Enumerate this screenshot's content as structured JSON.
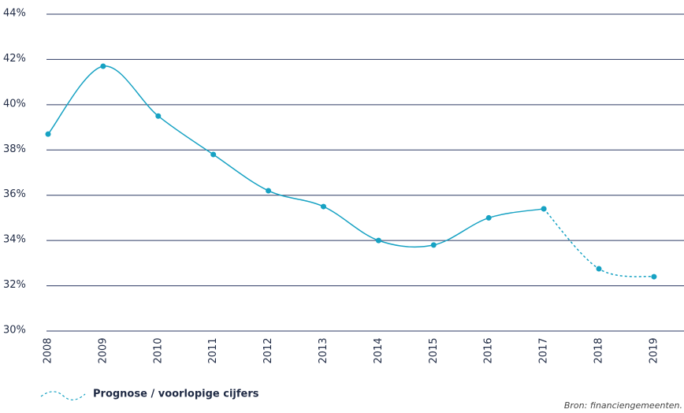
{
  "chart_data": {
    "type": "line",
    "categories": [
      "2008",
      "2009",
      "2010",
      "2011",
      "2012",
      "2013",
      "2014",
      "2015",
      "2016",
      "2017",
      "2018",
      "2019"
    ],
    "series": [
      {
        "color": "#17a2c3",
        "dash": false,
        "values": [
          38.7,
          41.7,
          39.5,
          37.8,
          36.2,
          35.5,
          34.0,
          33.8,
          35.0,
          35.4,
          null,
          null
        ]
      },
      {
        "name": "Prognose / voorlopige cijfers",
        "color": "#17a2c3",
        "dash": true,
        "values": [
          null,
          null,
          null,
          null,
          null,
          null,
          null,
          null,
          null,
          35.4,
          32.75,
          32.4
        ]
      }
    ],
    "ylim": [
      30,
      44
    ],
    "yticks": [
      {
        "value": 30,
        "label": "30%"
      },
      {
        "value": 32,
        "label": "32%"
      },
      {
        "value": 34,
        "label": "34%"
      },
      {
        "value": 36,
        "label": "36%"
      },
      {
        "value": 38,
        "label": "38%"
      },
      {
        "value": 40,
        "label": "40%"
      },
      {
        "value": 42,
        "label": "42%"
      },
      {
        "value": 44,
        "label": "44%"
      }
    ],
    "grid": true,
    "source": "Bron: financiengemeenten."
  }
}
